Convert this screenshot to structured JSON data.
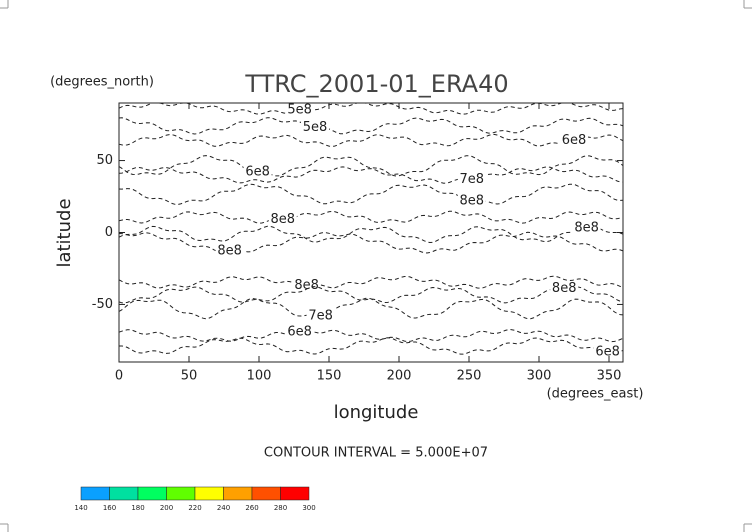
{
  "chart_data": {
    "type": "contour",
    "title": "TTRC_2001-01_ERA40",
    "x_label": "longitude",
    "y_label": "latitude",
    "x_unit": "(degrees_east)",
    "y_unit": "(degrees_north)",
    "xlim": [
      0,
      360
    ],
    "xticks": [
      0,
      50,
      100,
      150,
      200,
      250,
      300,
      350
    ],
    "ylim": [
      -90,
      90
    ],
    "yticks": [
      -50,
      0,
      50
    ],
    "footnote": "CONTOUR INTERVAL = 5.000E+07",
    "contour_labels": [
      {
        "value": 500000000,
        "label": "5e8",
        "lon": 129,
        "lat": 85
      },
      {
        "value": 500000000,
        "label": "5e8",
        "lon": 140,
        "lat": 73
      },
      {
        "value": 600000000,
        "label": "6e8",
        "lon": 99,
        "lat": 42
      },
      {
        "value": 600000000,
        "label": "6e8",
        "lon": 325,
        "lat": 64
      },
      {
        "value": 700000000,
        "label": "7e8",
        "lon": 252,
        "lat": 37
      },
      {
        "value": 800000000,
        "label": "8e8",
        "lon": 252,
        "lat": 22
      },
      {
        "value": 800000000,
        "label": "8e8",
        "lon": 117,
        "lat": 9
      },
      {
        "value": 800000000,
        "label": "8e8",
        "lon": 334,
        "lat": 3
      },
      {
        "value": 800000000,
        "label": "8e8",
        "lon": 79,
        "lat": -13
      },
      {
        "value": 800000000,
        "label": "8e8",
        "lon": 134,
        "lat": -37
      },
      {
        "value": 800000000,
        "label": "8e8",
        "lon": 318,
        "lat": -39
      },
      {
        "value": 700000000,
        "label": "7e8",
        "lon": 144,
        "lat": -58
      },
      {
        "value": 600000000,
        "label": "6e8",
        "lon": 129,
        "lat": -69
      },
      {
        "value": 600000000,
        "label": "6e8",
        "lon": 349,
        "lat": -83
      }
    ],
    "colorbar": {
      "ticks": [
        140,
        160,
        180,
        200,
        220,
        240,
        260,
        280,
        300
      ],
      "colors": [
        "#0aa0ff",
        "#00e0a0",
        "#00ff60",
        "#60ff00",
        "#ffff00",
        "#ffa000",
        "#ff5000",
        "#ff0000"
      ]
    }
  }
}
